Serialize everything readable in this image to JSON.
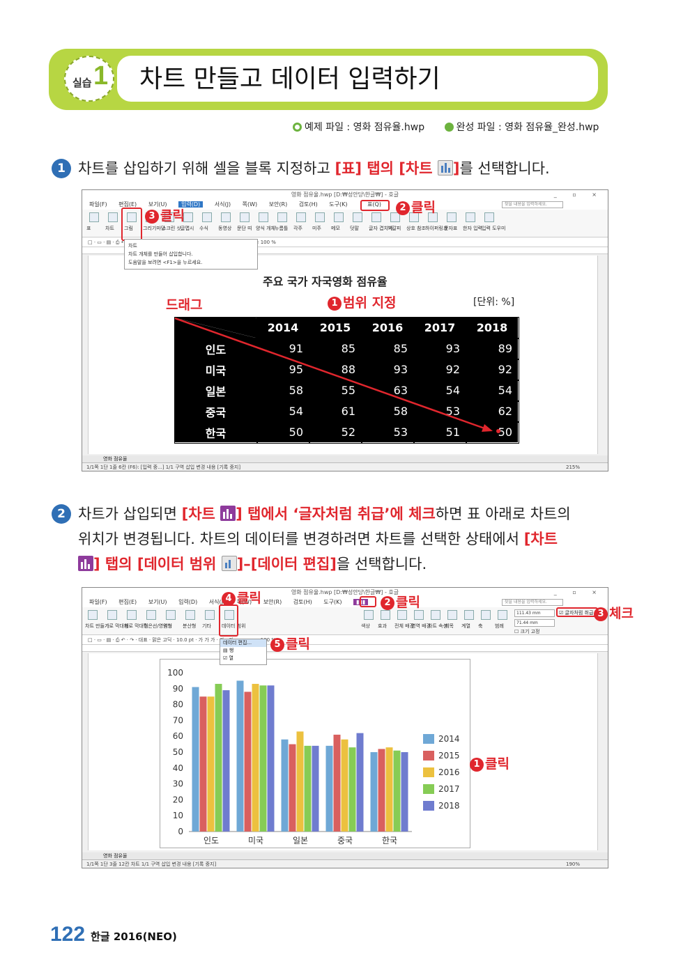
{
  "header": {
    "practice_label": "실습",
    "practice_num": "1",
    "title": "차트 만들고 데이터 입력하기",
    "example_file": "예제 파일 : 영화 점유율.hwp",
    "done_file": "완성 파일 : 영화 점유율_완성.hwp"
  },
  "step1": {
    "num": "1",
    "text_a": "차트를 삽입하기 위해 셀을 블록 지정하고 ",
    "text_b": "[표] 탭의 [차트 ",
    "text_c": "]",
    "text_d": "를 선택합니다."
  },
  "step2": {
    "num": "2",
    "line1_a": "차트가 삽입되면 ",
    "line1_b": "[차트 ",
    "line1_c": "] 탭에서 ‘글자처럼 취급’에 체크",
    "line1_d": "하면 표 아래로 차트의",
    "line2": "위치가 변경됩니다. 차트의 데이터를 변경하려면 차트를 선택한 상태에서 ",
    "line2_b": "[차트",
    "line3_a": "] 탭의 [데이터 범위 ",
    "line3_b": "]–[데이터 편집]",
    "line3_c": "을 선택합니다."
  },
  "shot1": {
    "window_title": "영화 점유율.hwp [D:₩성안당\\한글₩] - 호글",
    "window_controls": "_ ▫ ×",
    "menus": [
      "파일(F)",
      "편집(E)",
      "보기(U)",
      "입력(D)",
      "서식(J)",
      "쪽(W)",
      "보안(R)",
      "검토(H)",
      "도구(K)",
      "표(Q)"
    ],
    "search_placeholder": "찾을 내용을 입력하세요.",
    "ribbon": [
      "표",
      "차트",
      "그림",
      "그리기마당",
      "스크린 샷",
      "글맵시",
      "수식",
      "동영상",
      "문단 띠",
      "양식 개체",
      "누름틀",
      "각주",
      "미주",
      "메모",
      "덧말",
      "글자 겹치기",
      "책갈피",
      "상호 참조",
      "하이퍼링크",
      "문자표",
      "한자 입력",
      "입력 도우미"
    ],
    "toolbar": "□ · ▭ · ▤ · ⎙ ↶ · ↷ ·    대표 · 맑은 고딕 · 10.0 pt · 가 가 가 · 가 · 가 · ≡ ≡ ≡ ≡ 100 %",
    "tooltip_title": "차트",
    "tooltip_line1": "차트 개체를 만들어 삽입합니다.",
    "tooltip_line2": "도움말을 보려면 <F1>을 누르세요.",
    "doc_title": "주요  국가  자국영화  점유율",
    "unit": "[단위:  %]",
    "drag_label": "드래그",
    "range_label": "범위 지정",
    "click_label": "클릭",
    "tab_label": "영화 점유율",
    "status": "1/1쪽  1단  1줄  6칸  (F6): [입력 중...]  1/1 구역  삽입  변경 내용 [기록 중지]",
    "zoom": "215%",
    "table": {
      "years": [
        "2014",
        "2015",
        "2016",
        "2017",
        "2018"
      ],
      "rows": [
        {
          "country": "인도",
          "values": [
            "91",
            "85",
            "85",
            "93",
            "89"
          ]
        },
        {
          "country": "미국",
          "values": [
            "95",
            "88",
            "93",
            "92",
            "92"
          ]
        },
        {
          "country": "일본",
          "values": [
            "58",
            "55",
            "63",
            "54",
            "54"
          ]
        },
        {
          "country": "중국",
          "values": [
            "54",
            "61",
            "58",
            "53",
            "62"
          ]
        },
        {
          "country": "한국",
          "values": [
            "50",
            "52",
            "53",
            "51",
            "50"
          ]
        }
      ]
    }
  },
  "shot2": {
    "window_title": "영화 점유율.hwp [D:₩성안당\\한글₩] - 호글",
    "menus": [
      "파일(F)",
      "편집(E)",
      "보기(U)",
      "입력(D)",
      "서식(J)",
      "쪽(W)",
      "보안(R)",
      "검토(H)",
      "도구(K)"
    ],
    "ribbon": [
      "차트 만들기",
      "가로 막대형",
      "세로 막대형",
      "꺾은선/영역형",
      "원형",
      "분산형",
      "기타",
      "데이터 범위",
      "색상",
      "효과",
      "전체 배경",
      "영역 배경",
      "차트 속성",
      "제목",
      "계열",
      "축",
      "범례"
    ],
    "width_value": "111.43 mm",
    "height_value": "71.44 mm",
    "treat_as_char": "글자처럼 취급",
    "size_fix": "크기 고정",
    "menu_edit": "데이터 편집...",
    "menu_row": "행",
    "menu_col": "열",
    "click_label": "클릭",
    "check_label": "체크",
    "tab_label": "영화 점유율",
    "status": "1/1쪽  1단  3줄  12칸  차트  1/1 구역  삽입  변경 내용 [기록 중지]",
    "zoom": "190%"
  },
  "chart_data": {
    "type": "bar",
    "categories": [
      "인도",
      "미국",
      "일본",
      "중국",
      "한국"
    ],
    "series": [
      {
        "name": "2014",
        "values": [
          91,
          95,
          58,
          54,
          50
        ],
        "color": "#6fa8d6"
      },
      {
        "name": "2015",
        "values": [
          85,
          88,
          55,
          61,
          52
        ],
        "color": "#d9605f"
      },
      {
        "name": "2016",
        "values": [
          85,
          93,
          63,
          58,
          53
        ],
        "color": "#ecc13f"
      },
      {
        "name": "2017",
        "values": [
          93,
          92,
          54,
          53,
          51
        ],
        "color": "#86cc55"
      },
      {
        "name": "2018",
        "values": [
          89,
          92,
          54,
          62,
          50
        ],
        "color": "#6f7ccf"
      }
    ],
    "yticks": [
      "0",
      "10",
      "20",
      "30",
      "40",
      "50",
      "60",
      "70",
      "80",
      "90",
      "100"
    ],
    "ylim": [
      0,
      100
    ],
    "grid": false,
    "legend": "right"
  },
  "footer": {
    "page": "122",
    "book": "한글 2016(NEO)"
  }
}
